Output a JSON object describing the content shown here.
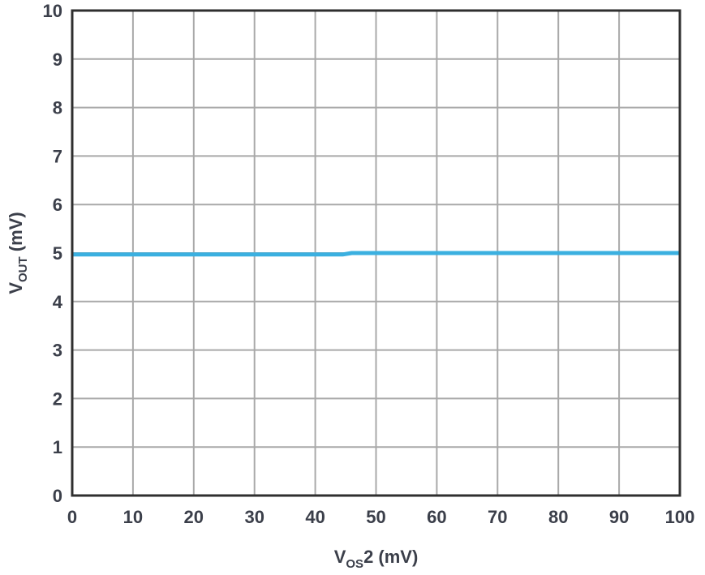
{
  "chart_data": {
    "type": "line",
    "title": "",
    "xlabel": {
      "main": "V",
      "sub": "OS",
      "rest": "2 (mV)"
    },
    "ylabel": {
      "main": "V",
      "sub": "OUT",
      "rest": " (mV)"
    },
    "xlim": [
      0,
      100
    ],
    "ylim": [
      0,
      10
    ],
    "xticks": [
      0,
      10,
      20,
      30,
      40,
      50,
      60,
      70,
      80,
      90,
      100
    ],
    "yticks": [
      0,
      1,
      2,
      3,
      4,
      5,
      6,
      7,
      8,
      9,
      10
    ],
    "grid": true,
    "legend": "none",
    "series": [
      {
        "color": "#3bb0e0",
        "x": [
          0,
          44.5,
          46,
          100
        ],
        "y": [
          4.97,
          4.97,
          5.0,
          5.0
        ]
      }
    ]
  },
  "colors": {
    "grid": "#a9a9a9",
    "frame": "#2f2f2f",
    "text": "#3b3f4a"
  }
}
